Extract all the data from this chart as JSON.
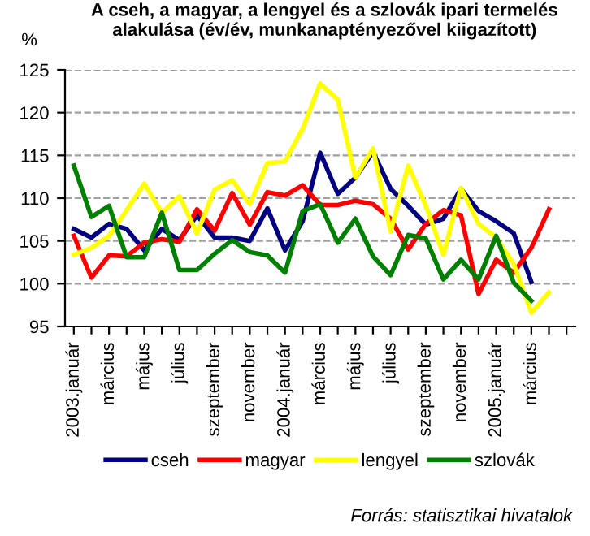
{
  "chart_data": {
    "type": "line",
    "title": "A cseh, a magyar, a lengyel és a szlovák ipari termelés alakulása (év/év, munkanaptényezővel kiigazított)",
    "ylabel": "%",
    "categories": [
      "2003.január",
      null,
      "március",
      null,
      "május",
      null,
      "július",
      null,
      "szeptember",
      null,
      "november",
      null,
      "2004.január",
      null,
      "március",
      null,
      "május",
      null,
      "július",
      null,
      "szeptember",
      null,
      "november",
      null,
      "2005.január",
      null,
      "március",
      null,
      null
    ],
    "series": [
      {
        "name": "cseh",
        "color": "#000080",
        "values": [
          106.4,
          105.4,
          107.0,
          106.4,
          103.9,
          106.4,
          105.1,
          108.0,
          105.4,
          105.4,
          105.0,
          108.8,
          103.9,
          107.3,
          115.3,
          110.5,
          112.4,
          115.4,
          111.1,
          109.1,
          106.9,
          107.6,
          111.1,
          108.5,
          107.3,
          105.9,
          100.2,
          null,
          null
        ]
      },
      {
        "name": "magyar",
        "color": "#ff0000",
        "values": [
          105.6,
          100.7,
          103.3,
          103.2,
          104.8,
          105.2,
          104.9,
          108.7,
          106.2,
          110.6,
          106.9,
          110.7,
          110.3,
          111.5,
          109.2,
          109.2,
          109.7,
          109.3,
          107.6,
          104.0,
          107.0,
          108.6,
          108.0,
          98.8,
          102.8,
          101.3,
          104.2,
          108.7,
          null
        ]
      },
      {
        "name": "lengyel",
        "color": "#ffff00",
        "values": [
          103.4,
          104.2,
          105.6,
          108.6,
          111.7,
          108.3,
          110.2,
          105.9,
          111.0,
          112.1,
          109.3,
          114.1,
          114.3,
          118.1,
          123.4,
          121.5,
          112.4,
          115.8,
          106.1,
          113.8,
          109.1,
          103.4,
          111.2,
          107.0,
          105.4,
          102.3,
          96.6,
          99.0,
          null
        ]
      },
      {
        "name": "szlovák",
        "color": "#008000",
        "values": [
          113.8,
          107.8,
          109.1,
          103.1,
          103.1,
          108.3,
          101.6,
          101.6,
          103.5,
          105.1,
          103.7,
          103.3,
          101.3,
          108.5,
          109.3,
          104.8,
          107.6,
          103.2,
          101.0,
          105.7,
          105.3,
          100.5,
          102.8,
          100.5,
          105.6,
          100.1,
          98.0,
          null,
          null
        ]
      }
    ],
    "ylim": [
      95,
      125
    ],
    "yticks": [
      95,
      100,
      105,
      110,
      115,
      120,
      125
    ],
    "grid": "y",
    "legend": "bottom",
    "marker": "none",
    "line_style": "solid",
    "annotations": [
      "Forrás: statisztikai hivatalok"
    ]
  }
}
